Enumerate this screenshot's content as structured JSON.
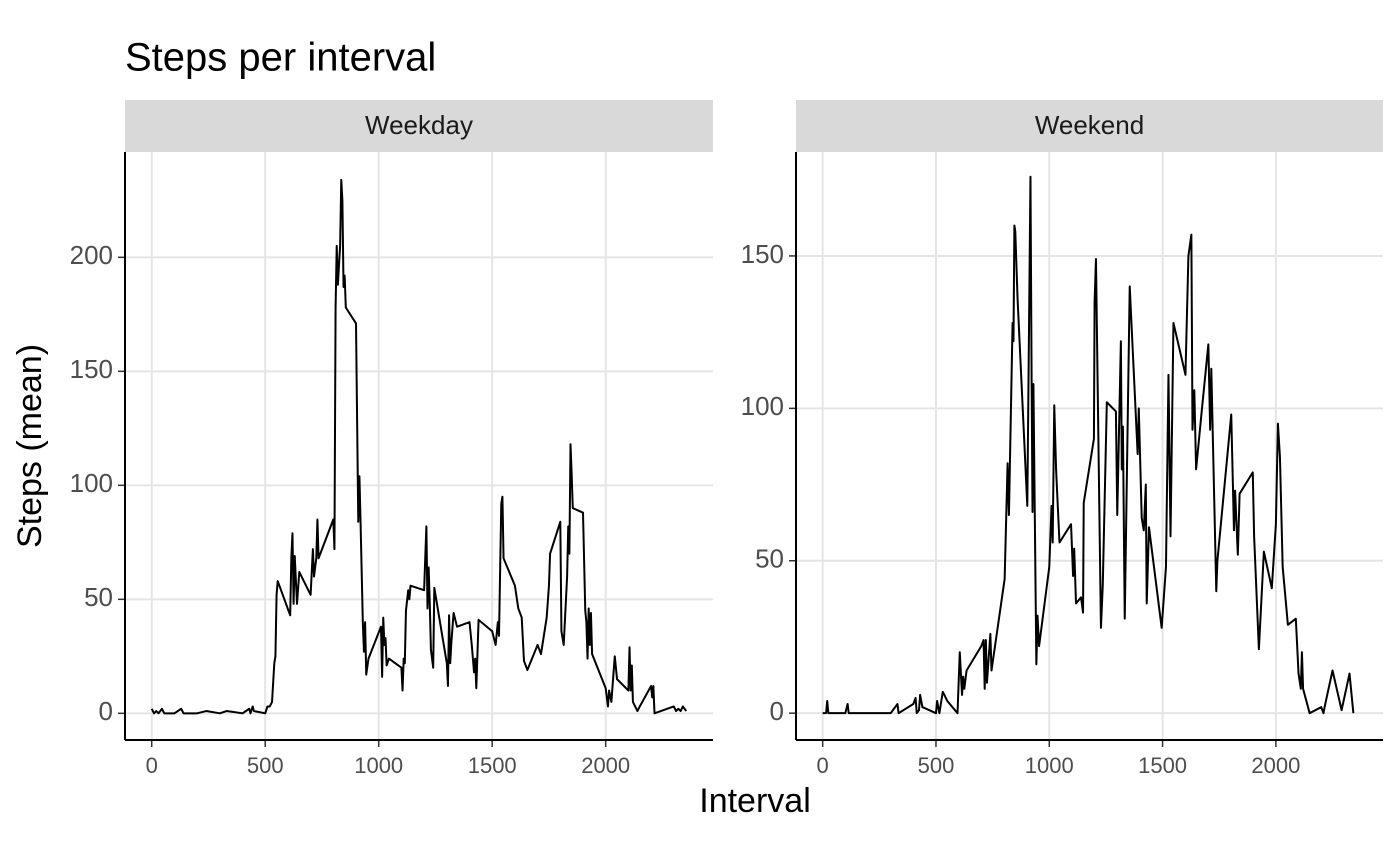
{
  "title": "Steps per interval",
  "x_label": "Interval",
  "y_label": "Steps (mean)",
  "chart_data": [
    {
      "type": "line",
      "facet": "Weekday",
      "x": [
        0,
        10,
        20,
        30,
        45,
        55,
        100,
        130,
        140,
        200,
        240,
        300,
        330,
        400,
        430,
        435,
        445,
        450,
        500,
        510,
        520,
        530,
        540,
        545,
        550,
        555,
        610,
        615,
        620,
        625,
        630,
        640,
        650,
        700,
        710,
        715,
        725,
        730,
        735,
        800,
        805,
        810,
        815,
        820,
        830,
        835,
        840,
        845,
        850,
        855,
        900,
        910,
        915,
        920,
        930,
        935,
        940,
        945,
        955,
        1010,
        1015,
        1020,
        1025,
        1030,
        1035,
        1045,
        1100,
        1105,
        1110,
        1115,
        1120,
        1130,
        1135,
        1140,
        1200,
        1210,
        1215,
        1220,
        1225,
        1230,
        1240,
        1245,
        1300,
        1305,
        1310,
        1315,
        1320,
        1330,
        1345,
        1400,
        1410,
        1420,
        1425,
        1430,
        1440,
        1500,
        1515,
        1525,
        1530,
        1540,
        1545,
        1550,
        1600,
        1615,
        1630,
        1640,
        1655,
        1700,
        1715,
        1740,
        1750,
        1755,
        1800,
        1805,
        1815,
        1830,
        1835,
        1840,
        1845,
        1850,
        1855,
        1900,
        1910,
        1915,
        1920,
        1925,
        1930,
        1935,
        1940,
        2000,
        2010,
        2015,
        2025,
        2040,
        2045,
        2050,
        2100,
        2105,
        2110,
        2115,
        2120,
        2140,
        2150,
        2200,
        2205,
        2210,
        2215,
        2300,
        2310,
        2320,
        2330,
        2340,
        2355
      ],
      "series": [
        {
          "color": "#000000",
          "values": [
            2,
            0,
            1,
            0,
            2,
            0,
            0,
            2,
            0,
            0,
            1,
            0,
            1,
            0,
            2,
            0,
            3,
            1,
            0,
            3,
            3,
            5,
            22,
            25,
            52,
            58,
            43,
            68,
            79,
            48,
            69,
            48,
            62,
            52,
            72,
            60,
            68,
            85,
            68,
            85,
            72,
            178,
            205,
            188,
            205,
            234,
            225,
            187,
            192,
            178,
            171,
            84,
            104,
            84,
            40,
            27,
            40,
            17,
            24,
            38,
            16,
            42,
            30,
            33,
            21,
            24,
            20,
            10,
            24,
            22,
            45,
            54,
            50,
            56,
            54,
            82,
            46,
            64,
            48,
            28,
            20,
            55,
            22,
            12,
            43,
            22,
            31,
            44,
            38,
            40,
            30,
            18,
            24,
            11,
            41,
            36,
            30,
            40,
            34,
            92,
            95,
            68,
            56,
            46,
            42,
            23,
            19,
            30,
            26,
            42,
            56,
            70,
            84,
            36,
            30,
            60,
            82,
            70,
            118,
            105,
            90,
            88,
            45,
            40,
            24,
            46,
            30,
            44,
            26,
            11,
            3,
            10,
            5,
            25,
            20,
            15,
            10,
            29,
            10,
            21,
            5,
            1,
            3,
            12,
            7,
            12,
            0,
            3,
            1,
            2,
            1,
            3,
            1
          ]
        }
      ],
      "xlim": [
        -117.75,
        2472.75
      ],
      "xticks": [
        0,
        500,
        1000,
        1500,
        2000
      ],
      "ylim": [
        -11.7,
        246.2
      ],
      "yticks": [
        0,
        50,
        100,
        150,
        200
      ],
      "grid": true
    },
    {
      "type": "line",
      "facet": "Weekend",
      "x": [
        0,
        15,
        20,
        25,
        100,
        110,
        115,
        200,
        300,
        330,
        335,
        400,
        410,
        415,
        425,
        430,
        440,
        500,
        505,
        515,
        530,
        550,
        595,
        605,
        615,
        620,
        625,
        635,
        700,
        710,
        715,
        720,
        725,
        740,
        745,
        803,
        816,
        822,
        838,
        842,
        846,
        850,
        860,
        903,
        917,
        922,
        926,
        930,
        943,
        948,
        955,
        1000,
        1010,
        1015,
        1022,
        1030,
        1045,
        1096,
        1105,
        1110,
        1118,
        1140,
        1149,
        1152,
        1197,
        1200,
        1206,
        1228,
        1236,
        1254,
        1294,
        1300,
        1316,
        1320,
        1325,
        1333,
        1355,
        1390,
        1395,
        1408,
        1417,
        1426,
        1430,
        1440,
        1496,
        1515,
        1526,
        1535,
        1548,
        1601,
        1614,
        1627,
        1632,
        1640,
        1648,
        1670,
        1702,
        1710,
        1715,
        1737,
        1742,
        1803,
        1815,
        1820,
        1832,
        1840,
        1898,
        1904,
        1925,
        1947,
        1982,
        2000,
        2009,
        2018,
        2030,
        2053,
        2088,
        2100,
        2110,
        2115,
        2120,
        2149,
        2200,
        2210,
        2215,
        2250,
        2290,
        2325,
        2342
      ],
      "series": [
        {
          "color": "#000000",
          "values": [
            0,
            0,
            4,
            0,
            0,
            3,
            0,
            0,
            0,
            3,
            0,
            3,
            5,
            0,
            1,
            6,
            2,
            0,
            4,
            0,
            7,
            4,
            0,
            20,
            6,
            12,
            8,
            14,
            22,
            24,
            8,
            24,
            10,
            26,
            14,
            44,
            82,
            65,
            128,
            122,
            160,
            158,
            136,
            68,
            176,
            110,
            66,
            108,
            16,
            32,
            22,
            48,
            68,
            56,
            101,
            80,
            56,
            62,
            45,
            54,
            36,
            38,
            33,
            69,
            90,
            135,
            149,
            28,
            42,
            102,
            99,
            65,
            122,
            80,
            94,
            31,
            140,
            85,
            100,
            64,
            60,
            75,
            36,
            61,
            28,
            48,
            111,
            58,
            128,
            111,
            150,
            157,
            93,
            106,
            80,
            97,
            121,
            93,
            113,
            40,
            50,
            98,
            60,
            73,
            52,
            72,
            79,
            58,
            21,
            53,
            41,
            62,
            95,
            84,
            48,
            29,
            31,
            13,
            8,
            20,
            8,
            0,
            2,
            0,
            2,
            14,
            1,
            13,
            0
          ]
        }
      ],
      "xlim": [
        -117.75,
        2472.75
      ],
      "xticks": [
        0,
        500,
        1000,
        1500,
        2000
      ],
      "ylim": [
        -8.8,
        184.1
      ],
      "yticks": [
        0,
        50,
        100,
        150
      ],
      "grid": true
    }
  ]
}
